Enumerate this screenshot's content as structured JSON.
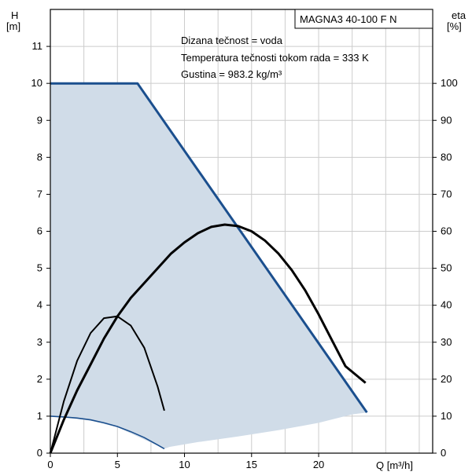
{
  "chart_data": {
    "type": "line",
    "model": "MAGNA3 40-100 F N",
    "y_left": {
      "label": "H",
      "unit": "[m]",
      "ylim": [
        0,
        12
      ],
      "ticks": [
        0,
        1,
        2,
        3,
        4,
        5,
        6,
        7,
        8,
        9,
        10,
        11
      ]
    },
    "y_right": {
      "label": "eta",
      "unit": "[%]",
      "ylim": [
        0,
        120
      ],
      "ticks": [
        0,
        10,
        20,
        30,
        40,
        50,
        60,
        70,
        80,
        90,
        100
      ]
    },
    "x_axis": {
      "label": "Q [m³/h]",
      "xlim": [
        0,
        28.5
      ],
      "ticks": [
        0,
        5,
        10,
        15,
        20
      ]
    },
    "annotations": [
      "Dizana tečnost = voda",
      "Temperatura tečnosti tokom rada = 333 K",
      "Gustina = 983.2 kg/m³"
    ],
    "grid": true,
    "colors": {
      "max_curve": "#1b4f8e",
      "operating_area": "#d0dce8",
      "efficiency": "#000000",
      "min_curve": "#1b4f8e"
    },
    "series": [
      {
        "id": "max_head",
        "axis": "H",
        "x": [
          0,
          6.5,
          23.6
        ],
        "y": [
          10,
          10,
          1.1
        ]
      },
      {
        "id": "operating_area",
        "axis": "H",
        "x": [
          0,
          6.5,
          23.6,
          22.5,
          20,
          17,
          14,
          11,
          8.9,
          8.5,
          5,
          3,
          1,
          0
        ],
        "y": [
          10,
          10,
          1.1,
          1.05,
          0.82,
          0.62,
          0.45,
          0.3,
          0.17,
          0.12,
          0.7,
          0.88,
          0.97,
          1.0
        ]
      },
      {
        "id": "min_head",
        "axis": "H",
        "x": [
          0,
          1,
          2,
          3,
          4,
          5,
          6,
          7,
          8,
          8.5
        ],
        "y": [
          1.0,
          0.98,
          0.95,
          0.9,
          0.82,
          0.72,
          0.58,
          0.42,
          0.22,
          0.12
        ]
      },
      {
        "id": "eta_max",
        "axis": "eta",
        "x": [
          0,
          1,
          2,
          3,
          4,
          5,
          6,
          7,
          8,
          9,
          10,
          11,
          12,
          13,
          14,
          15,
          16,
          17,
          18,
          19,
          20,
          21,
          22,
          23.5
        ],
        "y": [
          0,
          9,
          17,
          24,
          31,
          37,
          42,
          46,
          50,
          54,
          57,
          59.5,
          61.2,
          61.8,
          61.4,
          60,
          57.5,
          54,
          49.5,
          44,
          37.5,
          30.5,
          23.5,
          19
        ]
      },
      {
        "id": "eta_min",
        "axis": "eta",
        "x": [
          0,
          1,
          2,
          3,
          4,
          5,
          6,
          7,
          8,
          8.5
        ],
        "y": [
          0,
          14,
          25,
          32.5,
          36.5,
          37,
          34.5,
          28.5,
          18,
          11.5
        ]
      }
    ]
  }
}
